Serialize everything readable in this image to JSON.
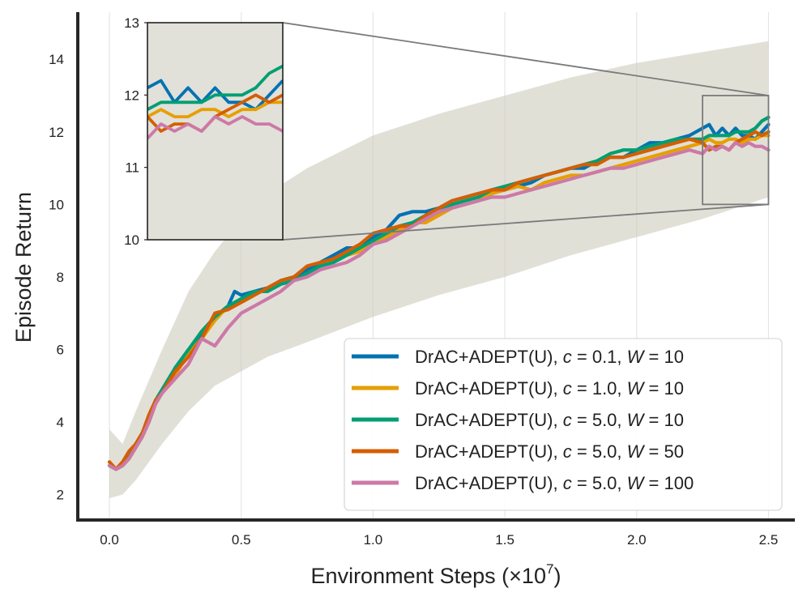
{
  "chart_data": {
    "type": "line",
    "xlabel": "Environment Steps (×10",
    "xlabel_exponent": "7",
    "xlabel_suffix": ")",
    "ylabel": "Episode Return",
    "xlim": [
      -0.12,
      2.6
    ],
    "ylim": [
      1.3,
      15.3
    ],
    "xticks": [
      "0.0",
      "0.5",
      "1.0",
      "1.5",
      "2.0",
      "2.5"
    ],
    "yticks": [
      "2",
      "4",
      "6",
      "8",
      "10",
      "12",
      "14"
    ],
    "grid": "vertical",
    "legend_position": "lower-right",
    "shaded_band": {
      "color": "#c9c6b6",
      "x": [
        0.0,
        0.05,
        0.1,
        0.2,
        0.3,
        0.4,
        0.5,
        0.6,
        0.75,
        1.0,
        1.25,
        1.5,
        1.75,
        2.0,
        2.25,
        2.5
      ],
      "lower": [
        1.9,
        2.0,
        2.4,
        3.4,
        4.3,
        5.0,
        5.4,
        5.8,
        6.2,
        6.9,
        7.5,
        8.0,
        8.6,
        9.1,
        9.6,
        10.2
      ],
      "upper": [
        3.8,
        3.4,
        4.3,
        6.0,
        7.6,
        8.7,
        9.6,
        10.3,
        11.0,
        11.9,
        12.5,
        13.0,
        13.5,
        13.9,
        14.2,
        14.5
      ]
    },
    "series": [
      {
        "name_prefix": "DrAC+ADEPT(U),",
        "c": "0.1",
        "W": "10",
        "color": "#0072b2",
        "x": [
          0.0,
          0.025,
          0.05,
          0.075,
          0.1,
          0.125,
          0.15,
          0.175,
          0.2,
          0.25,
          0.3,
          0.35,
          0.4,
          0.45,
          0.475,
          0.5,
          0.55,
          0.6,
          0.65,
          0.7,
          0.75,
          0.8,
          0.85,
          0.9,
          0.95,
          1.0,
          1.05,
          1.1,
          1.15,
          1.2,
          1.25,
          1.3,
          1.35,
          1.4,
          1.45,
          1.5,
          1.55,
          1.6,
          1.65,
          1.7,
          1.75,
          1.8,
          1.85,
          1.9,
          1.95,
          2.0,
          2.05,
          2.1,
          2.15,
          2.2,
          2.25,
          2.275,
          2.3,
          2.325,
          2.35,
          2.375,
          2.4,
          2.425,
          2.45,
          2.475,
          2.5
        ],
        "y": [
          2.8,
          2.7,
          2.8,
          3.0,
          3.3,
          3.6,
          4.1,
          4.6,
          4.8,
          5.5,
          6.0,
          6.4,
          6.9,
          7.2,
          7.6,
          7.5,
          7.6,
          7.7,
          7.9,
          8.0,
          8.2,
          8.4,
          8.6,
          8.8,
          8.8,
          9.1,
          9.3,
          9.7,
          9.8,
          9.8,
          9.9,
          10.1,
          10.2,
          10.3,
          10.3,
          10.4,
          10.5,
          10.6,
          10.8,
          10.9,
          11.0,
          11.0,
          11.2,
          11.3,
          11.3,
          11.5,
          11.7,
          11.7,
          11.8,
          11.9,
          12.1,
          12.2,
          11.9,
          12.1,
          11.9,
          12.1,
          11.9,
          11.9,
          11.8,
          12.0,
          12.2
        ]
      },
      {
        "name_prefix": "DrAC+ADEPT(U),",
        "c": "1.0",
        "W": "10",
        "color": "#e69f00",
        "x": [
          0.0,
          0.025,
          0.05,
          0.075,
          0.1,
          0.125,
          0.15,
          0.175,
          0.2,
          0.25,
          0.3,
          0.35,
          0.4,
          0.45,
          0.5,
          0.55,
          0.6,
          0.65,
          0.7,
          0.75,
          0.8,
          0.85,
          0.9,
          0.95,
          1.0,
          1.05,
          1.1,
          1.15,
          1.2,
          1.25,
          1.3,
          1.35,
          1.4,
          1.45,
          1.5,
          1.55,
          1.6,
          1.65,
          1.7,
          1.75,
          1.8,
          1.85,
          1.9,
          1.95,
          2.0,
          2.05,
          2.1,
          2.15,
          2.2,
          2.25,
          2.275,
          2.3,
          2.325,
          2.35,
          2.375,
          2.4,
          2.425,
          2.45,
          2.475,
          2.5
        ],
        "y": [
          2.9,
          2.7,
          2.8,
          3.0,
          3.3,
          3.6,
          4.0,
          4.5,
          4.8,
          5.3,
          5.9,
          6.3,
          6.8,
          7.2,
          7.3,
          7.5,
          7.7,
          7.8,
          7.9,
          8.1,
          8.3,
          8.5,
          8.6,
          8.7,
          8.9,
          9.1,
          9.3,
          9.5,
          9.5,
          9.7,
          9.9,
          10.0,
          10.1,
          10.3,
          10.4,
          10.5,
          10.4,
          10.6,
          10.7,
          10.8,
          10.8,
          10.9,
          11.0,
          11.1,
          11.2,
          11.3,
          11.4,
          11.5,
          11.6,
          11.7,
          11.8,
          11.7,
          11.7,
          11.8,
          11.8,
          11.7,
          11.8,
          11.8,
          11.9,
          11.9
        ]
      },
      {
        "name_prefix": "DrAC+ADEPT(U),",
        "c": "5.0",
        "W": "10",
        "color": "#009e73",
        "x": [
          0.0,
          0.025,
          0.05,
          0.075,
          0.1,
          0.125,
          0.15,
          0.175,
          0.2,
          0.25,
          0.3,
          0.35,
          0.4,
          0.45,
          0.5,
          0.55,
          0.6,
          0.65,
          0.7,
          0.75,
          0.8,
          0.85,
          0.9,
          0.95,
          1.0,
          1.05,
          1.1,
          1.15,
          1.2,
          1.25,
          1.3,
          1.35,
          1.4,
          1.45,
          1.5,
          1.55,
          1.6,
          1.65,
          1.7,
          1.75,
          1.8,
          1.85,
          1.9,
          1.95,
          2.0,
          2.05,
          2.1,
          2.15,
          2.2,
          2.25,
          2.275,
          2.3,
          2.325,
          2.35,
          2.375,
          2.4,
          2.425,
          2.45,
          2.475,
          2.5
        ],
        "y": [
          2.8,
          2.7,
          2.8,
          3.1,
          3.4,
          3.7,
          4.1,
          4.6,
          4.9,
          5.5,
          6.0,
          6.5,
          6.9,
          7.2,
          7.4,
          7.6,
          7.6,
          7.8,
          7.9,
          8.1,
          8.3,
          8.4,
          8.6,
          8.8,
          9.0,
          9.2,
          9.4,
          9.5,
          9.7,
          9.8,
          10.0,
          10.1,
          10.2,
          10.4,
          10.5,
          10.6,
          10.7,
          10.8,
          10.9,
          11.0,
          11.1,
          11.2,
          11.4,
          11.5,
          11.5,
          11.6,
          11.7,
          11.8,
          11.8,
          11.8,
          11.9,
          11.9,
          11.9,
          11.9,
          12.0,
          12.0,
          12.0,
          12.1,
          12.3,
          12.4
        ]
      },
      {
        "name_prefix": "DrAC+ADEPT(U),",
        "c": "5.0",
        "W": "50",
        "color": "#d55e00",
        "x": [
          0.0,
          0.025,
          0.05,
          0.075,
          0.1,
          0.125,
          0.15,
          0.175,
          0.2,
          0.25,
          0.3,
          0.35,
          0.4,
          0.45,
          0.5,
          0.55,
          0.6,
          0.65,
          0.7,
          0.75,
          0.8,
          0.85,
          0.9,
          0.95,
          1.0,
          1.05,
          1.1,
          1.15,
          1.2,
          1.25,
          1.3,
          1.35,
          1.4,
          1.45,
          1.5,
          1.55,
          1.6,
          1.65,
          1.7,
          1.75,
          1.8,
          1.85,
          1.9,
          1.95,
          2.0,
          2.05,
          2.1,
          2.15,
          2.2,
          2.25,
          2.275,
          2.3,
          2.325,
          2.35,
          2.375,
          2.4,
          2.425,
          2.45,
          2.475,
          2.5
        ],
        "y": [
          2.9,
          2.7,
          2.9,
          3.2,
          3.4,
          3.7,
          4.2,
          4.6,
          4.8,
          5.4,
          5.8,
          6.3,
          7.0,
          7.1,
          7.3,
          7.5,
          7.7,
          7.9,
          8.0,
          8.3,
          8.4,
          8.5,
          8.7,
          8.9,
          9.2,
          9.3,
          9.4,
          9.4,
          9.7,
          9.9,
          10.1,
          10.2,
          10.3,
          10.4,
          10.4,
          10.6,
          10.7,
          10.8,
          10.9,
          11.0,
          11.1,
          11.1,
          11.3,
          11.3,
          11.4,
          11.5,
          11.6,
          11.7,
          11.8,
          11.7,
          11.5,
          11.6,
          11.6,
          11.5,
          11.7,
          11.8,
          11.9,
          12.0,
          11.9,
          12.0
        ]
      },
      {
        "name_prefix": "DrAC+ADEPT(U),",
        "c": "5.0",
        "W": "100",
        "color": "#cc79a7",
        "x": [
          0.0,
          0.025,
          0.05,
          0.075,
          0.1,
          0.125,
          0.15,
          0.175,
          0.2,
          0.25,
          0.3,
          0.35,
          0.4,
          0.45,
          0.5,
          0.55,
          0.6,
          0.65,
          0.7,
          0.75,
          0.8,
          0.85,
          0.9,
          0.95,
          1.0,
          1.05,
          1.1,
          1.15,
          1.2,
          1.25,
          1.3,
          1.35,
          1.4,
          1.45,
          1.5,
          1.55,
          1.6,
          1.65,
          1.7,
          1.75,
          1.8,
          1.85,
          1.9,
          1.95,
          2.0,
          2.05,
          2.1,
          2.15,
          2.2,
          2.25,
          2.275,
          2.3,
          2.325,
          2.35,
          2.375,
          2.4,
          2.425,
          2.45,
          2.475,
          2.5
        ],
        "y": [
          2.8,
          2.7,
          2.8,
          3.0,
          3.3,
          3.6,
          4.0,
          4.5,
          4.8,
          5.2,
          5.6,
          6.3,
          6.1,
          6.6,
          7.0,
          7.2,
          7.4,
          7.6,
          7.9,
          8.0,
          8.2,
          8.3,
          8.4,
          8.6,
          8.9,
          9.0,
          9.2,
          9.4,
          9.6,
          9.8,
          9.9,
          10.0,
          10.1,
          10.2,
          10.2,
          10.3,
          10.4,
          10.5,
          10.6,
          10.7,
          10.8,
          10.9,
          11.0,
          11.0,
          11.1,
          11.2,
          11.3,
          11.4,
          11.5,
          11.4,
          11.6,
          11.5,
          11.6,
          11.5,
          11.7,
          11.6,
          11.7,
          11.6,
          11.6,
          11.5
        ]
      }
    ],
    "inset": {
      "xlim": [
        2.25,
        2.5
      ],
      "ylim": [
        10,
        13
      ],
      "yticks": [
        "10",
        "11",
        "12",
        "13"
      ]
    }
  }
}
